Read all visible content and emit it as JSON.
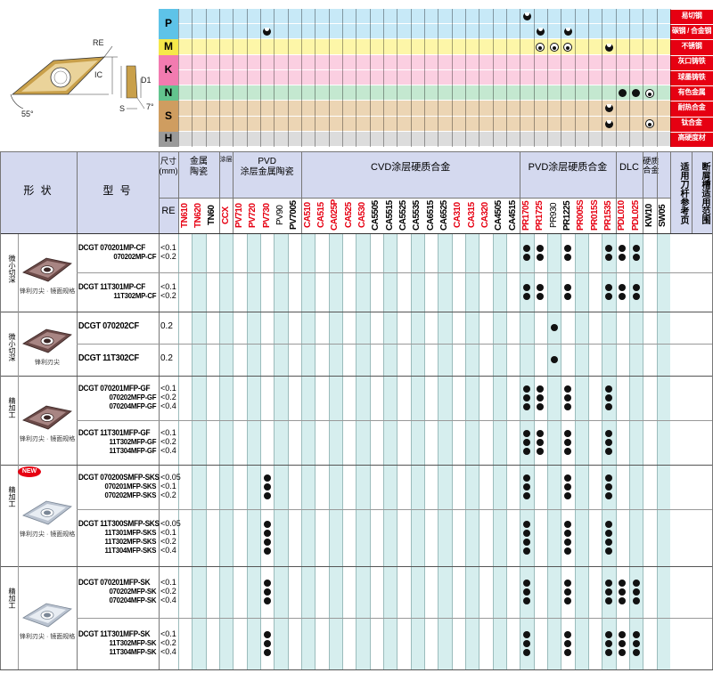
{
  "iso_groups": [
    {
      "letter": "P",
      "color": "#5ec3e8",
      "rows": [
        {
          "label": "易切钢",
          "color": "#c7e9f7"
        },
        {
          "label": "碳钢 / 合金钢",
          "color": "#c7e9f7"
        }
      ]
    },
    {
      "letter": "M",
      "color": "#f6e84a",
      "rows": [
        {
          "label": "不锈钢",
          "color": "#fdf6a8"
        }
      ]
    },
    {
      "letter": "K",
      "color": "#f27bb0",
      "rows": [
        {
          "label": "灰口铸铁",
          "color": "#fbcfe1"
        },
        {
          "label": "球墨铸铁",
          "color": "#fbcfe1"
        }
      ]
    },
    {
      "letter": "N",
      "color": "#63c48e",
      "rows": [
        {
          "label": "有色金属",
          "color": "#c4e8d0"
        }
      ]
    },
    {
      "letter": "S",
      "color": "#cf9d60",
      "rows": [
        {
          "label": "耐热合金",
          "color": "#ecd5b4"
        },
        {
          "label": "钛合金",
          "color": "#ecd5b4"
        }
      ]
    },
    {
      "letter": "H",
      "color": "#9a9a9a",
      "rows": [
        {
          "label": "高硬度材",
          "color": "#dcdcdc"
        }
      ]
    }
  ],
  "diagram": {
    "re": "RE",
    "ic": "IC",
    "d1": "D1",
    "s": "S",
    "angle55": "55°",
    "angle7": "7°"
  },
  "headers": {
    "shape": "形 状",
    "model": "型 号",
    "size": "尺寸\n(mm)",
    "re": "RE",
    "cermet": "金属\n陶瓷",
    "coated_cermet": "涂层",
    "pvd_cermet": "PVD\n涂层金属陶瓷",
    "cvd": "CVD涂层硬质合金",
    "pvd": "PVD涂层硬质合金",
    "dlc": "DLC",
    "carbide": "硬质\n合金",
    "holder_ref": "适用刀杆参考页",
    "chipbreaker": "断屑槽适用范围"
  },
  "grades": [
    {
      "name": "TN610",
      "color": "#e60012"
    },
    {
      "name": "TN620",
      "color": "#e60012"
    },
    {
      "name": "TN60",
      "color": "#000000"
    },
    {
      "name": "CCX",
      "color": "#e60012"
    },
    {
      "name": "PV710",
      "color": "#e60012"
    },
    {
      "name": "PV720",
      "color": "#e60012"
    },
    {
      "name": "PV730",
      "color": "#e60012"
    },
    {
      "name": "PV90",
      "color": "#000000",
      "light": true
    },
    {
      "name": "PV7005",
      "color": "#000000"
    },
    {
      "name": "CA510",
      "color": "#e60012"
    },
    {
      "name": "CA515",
      "color": "#e60012"
    },
    {
      "name": "CA025P",
      "color": "#e60012"
    },
    {
      "name": "CA525",
      "color": "#e60012"
    },
    {
      "name": "CA530",
      "color": "#e60012"
    },
    {
      "name": "CA5505",
      "color": "#000000"
    },
    {
      "name": "CA5515",
      "color": "#000000"
    },
    {
      "name": "CA5525",
      "color": "#000000"
    },
    {
      "name": "CA5535",
      "color": "#000000"
    },
    {
      "name": "CA6515",
      "color": "#000000"
    },
    {
      "name": "CA6525",
      "color": "#000000"
    },
    {
      "name": "CA310",
      "color": "#e60012"
    },
    {
      "name": "CA315",
      "color": "#e60012"
    },
    {
      "name": "CA320",
      "color": "#e60012"
    },
    {
      "name": "CA4505",
      "color": "#000000"
    },
    {
      "name": "CA4515",
      "color": "#000000"
    },
    {
      "name": "PR1705",
      "color": "#e60012"
    },
    {
      "name": "PR1725",
      "color": "#e60012"
    },
    {
      "name": "PR930",
      "color": "#000000",
      "light": true
    },
    {
      "name": "PR1225",
      "color": "#000000"
    },
    {
      "name": "PR005S",
      "color": "#e60012"
    },
    {
      "name": "PR015S",
      "color": "#e60012"
    },
    {
      "name": "PR1535",
      "color": "#e60012"
    },
    {
      "name": "PDL010",
      "color": "#e60012"
    },
    {
      "name": "PDL025",
      "color": "#e60012"
    },
    {
      "name": "KW10",
      "color": "#000000"
    },
    {
      "name": "SW05",
      "color": "#000000"
    }
  ],
  "iso_marks": [
    {
      "row": 0,
      "grade": 25,
      "type": "half"
    },
    {
      "row": 1,
      "grade": 6,
      "type": "half"
    },
    {
      "row": 1,
      "grade": 26,
      "type": "half"
    },
    {
      "row": 1,
      "grade": 28,
      "type": "half"
    },
    {
      "row": 2,
      "grade": 26,
      "type": "ring"
    },
    {
      "row": 2,
      "grade": 27,
      "type": "ring"
    },
    {
      "row": 2,
      "grade": 28,
      "type": "ring"
    },
    {
      "row": 2,
      "grade": 31,
      "type": "half"
    },
    {
      "row": 5,
      "grade": 32,
      "type": "dot"
    },
    {
      "row": 5,
      "grade": 33,
      "type": "dot"
    },
    {
      "row": 5,
      "grade": 34,
      "type": "ring"
    },
    {
      "row": 6,
      "grade": 31,
      "type": "half"
    },
    {
      "row": 7,
      "grade": 31,
      "type": "half"
    },
    {
      "row": 7,
      "grade": 34,
      "type": "ring"
    }
  ],
  "sections": [
    {
      "shape_label": "微小切深",
      "caption": "锋利刃尖 · 镜面规格",
      "new": false,
      "insert": "dark",
      "groups": [
        {
          "models": [
            "DCGT 070201MP-CF",
            "070202MP-CF"
          ],
          "sizes": [
            "<0.1",
            "<0.2"
          ],
          "big": false,
          "grades": [
            25,
            26,
            28,
            31,
            32,
            33
          ]
        },
        {
          "models": [
            "DCGT 11T301MP-CF",
            "11T302MP-CF"
          ],
          "sizes": [
            "<0.1",
            "<0.2"
          ],
          "big": false,
          "grades": [
            25,
            26,
            28,
            31,
            32,
            33
          ]
        }
      ]
    },
    {
      "shape_label": "微小切深",
      "caption": "锋利刃尖",
      "new": false,
      "insert": "dark",
      "groups": [
        {
          "models": [
            "DCGT 070202CF"
          ],
          "sizes": [
            "0.2"
          ],
          "big": true,
          "grades": [
            27
          ]
        },
        {
          "models": [
            "DCGT 11T302CF"
          ],
          "sizes": [
            "0.2"
          ],
          "big": true,
          "grades": [
            27
          ]
        }
      ]
    },
    {
      "shape_label": "精加工",
      "caption": "锋利刃尖 · 镜面规格",
      "new": false,
      "insert": "dark",
      "groups": [
        {
          "models": [
            "DCGT 070201MFP-GF",
            "070202MFP-GF",
            "070204MFP-GF"
          ],
          "sizes": [
            "<0.1",
            "<0.2",
            "<0.4"
          ],
          "big": false,
          "grades": [
            25,
            26,
            28,
            31
          ]
        },
        {
          "models": [
            "DCGT 11T301MFP-GF",
            "11T302MFP-GF",
            "11T304MFP-GF"
          ],
          "sizes": [
            "<0.1",
            "<0.2",
            "<0.4"
          ],
          "big": false,
          "grades": [
            25,
            26,
            28,
            31
          ]
        }
      ]
    },
    {
      "shape_label": "精加工",
      "caption": "锋利刃尖 · 镜面规格",
      "new": true,
      "new_label": "NEW",
      "insert": "silver",
      "groups": [
        {
          "models": [
            "DCGT 070200SMFP-SKS",
            "070201MFP-SKS",
            "070202MFP-SKS"
          ],
          "sizes": [
            "<0.05",
            "<0.1",
            "<0.2"
          ],
          "big": false,
          "grades": [
            6,
            25,
            28,
            31
          ]
        },
        {
          "models": [
            "DCGT 11T300SMFP-SKS",
            "11T301MFP-SKS",
            "11T302MFP-SKS",
            "11T304MFP-SKS"
          ],
          "sizes": [
            "<0.05",
            "<0.1",
            "<0.2",
            "<0.4"
          ],
          "big": false,
          "grades": [
            6,
            25,
            28,
            31
          ]
        }
      ]
    },
    {
      "shape_label": "精加工",
      "caption": "锋利刃尖 · 镜面规格",
      "new": false,
      "insert": "silver",
      "groups": [
        {
          "models": [
            "DCGT 070201MFP-SK",
            "070202MFP-SK",
            "070204MFP-SK"
          ],
          "sizes": [
            "<0.1",
            "<0.2",
            "<0.4"
          ],
          "big": false,
          "grades": [
            6,
            25,
            28,
            31,
            32,
            33
          ]
        },
        {
          "models": [
            "DCGT 11T301MFP-SK",
            "11T302MFP-SK",
            "11T304MFP-SK"
          ],
          "sizes": [
            "<0.1",
            "<0.2",
            "<0.4"
          ],
          "big": false,
          "grades": [
            6,
            25,
            28,
            31,
            32,
            33
          ]
        }
      ]
    }
  ]
}
